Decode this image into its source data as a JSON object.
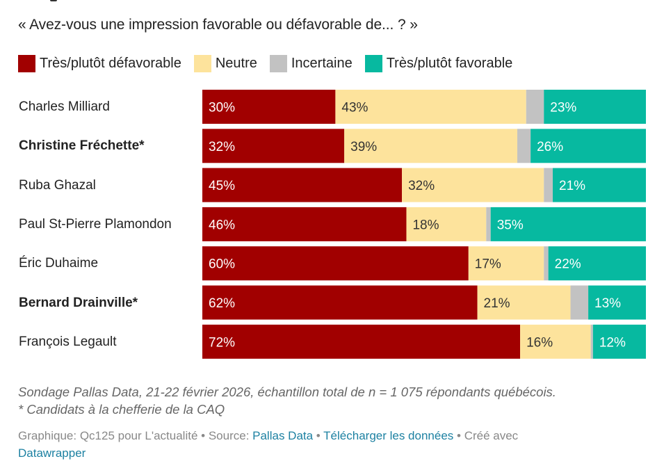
{
  "chart_data": {
    "type": "bar",
    "orientation": "horizontal",
    "stacked": true,
    "title": "",
    "subtitle": "« Avez-vous une impression favorable ou défavorable de... ? »",
    "xlabel": "",
    "ylabel": "",
    "xlim": [
      0,
      100
    ],
    "unit": "%",
    "legend_position": "top-left",
    "categories": [
      "Charles Milliard",
      "Christine Fréchette*",
      "Ruba Ghazal",
      "Paul St-Pierre Plamondon",
      "Éric Duhaime",
      "Bernard Drainville*",
      "François Legault"
    ],
    "bold_categories": [
      false,
      true,
      false,
      false,
      false,
      true,
      false
    ],
    "series": [
      {
        "name": "Très/plutôt défavorable",
        "color": "#a10000",
        "label_color": "#ffffff",
        "values": [
          30,
          32,
          45,
          46,
          60,
          62,
          72
        ],
        "show_labels": true
      },
      {
        "name": "Neutre",
        "color": "#fde39c",
        "label_color": "#333333",
        "values": [
          43,
          39,
          32,
          18,
          17,
          21,
          16
        ],
        "show_labels": true
      },
      {
        "name": "Incertaine",
        "color": "#c2c2c2",
        "label_color": "#333333",
        "values": [
          4,
          3,
          2,
          1,
          1,
          4,
          0.5
        ],
        "show_labels": false
      },
      {
        "name": "Très/plutôt favorable",
        "color": "#07b9a0",
        "label_color": "#ffffff",
        "values": [
          23,
          26,
          21,
          35,
          22,
          13,
          12
        ],
        "show_labels": true
      }
    ],
    "notes": [
      "Sondage Pallas Data, 21-22 février 2026, échantillon total de n = 1 075 répondants québécois.",
      "* Candidats à la chefferie de la CAQ"
    ]
  },
  "footer": {
    "graphic_prefix": "Graphique: Qc125 pour L'actualité",
    "sep": " • ",
    "source_prefix": "Source: ",
    "source_link": "Pallas Data",
    "download_link": "Télécharger les données",
    "created_with": "Créé avec",
    "datawrapper_link": "Datawrapper"
  }
}
